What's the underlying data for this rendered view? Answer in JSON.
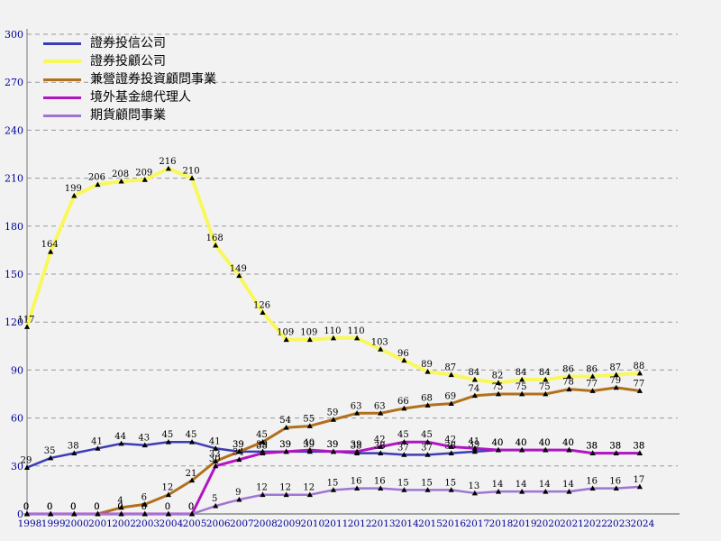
{
  "chart_data": {
    "type": "line",
    "x": [
      1998,
      1999,
      2000,
      2001,
      2002,
      2003,
      2004,
      2005,
      2006,
      2007,
      2008,
      2009,
      2010,
      2011,
      2012,
      2013,
      2014,
      2015,
      2016,
      2017,
      2018,
      2019,
      2020,
      2021,
      2022,
      2023,
      2024
    ],
    "series": [
      {
        "name": "證券投信公司",
        "color": "#3c3cb4",
        "width": 2.5,
        "values": [
          29,
          35,
          38,
          41,
          44,
          43,
          45,
          45,
          41,
          39,
          39,
          39,
          39,
          39,
          38,
          38,
          37,
          37,
          38,
          39,
          40,
          40,
          40,
          40,
          38,
          38,
          38
        ]
      },
      {
        "name": "證券投顧公司",
        "color": "#f8f85c",
        "width": 4,
        "values": [
          117,
          164,
          199,
          206,
          208,
          209,
          216,
          210,
          168,
          149,
          126,
          109,
          109,
          110,
          110,
          103,
          96,
          89,
          87,
          84,
          82,
          84,
          84,
          86,
          86,
          87,
          88
        ]
      },
      {
        "name": "兼營證券投資顧問事業",
        "color": "#b1701c",
        "width": 3,
        "values": [
          0,
          0,
          0,
          0,
          4,
          6,
          12,
          21,
          33,
          39,
          45,
          54,
          55,
          59,
          63,
          63,
          66,
          68,
          69,
          74,
          75,
          75,
          75,
          78,
          77,
          79,
          77
        ]
      },
      {
        "name": "境外基金總代理人",
        "color": "#b016c0",
        "width": 3,
        "values": [
          0,
          0,
          0,
          0,
          0,
          0,
          0,
          0,
          30,
          34,
          38,
          39,
          40,
          39,
          39,
          42,
          45,
          45,
          42,
          41,
          40,
          40,
          40,
          40,
          38,
          38,
          38
        ]
      },
      {
        "name": "期貨顧問事業",
        "color": "#9f75d3",
        "width": 2.5,
        "values": [
          0,
          0,
          0,
          0,
          0,
          0,
          0,
          0,
          5,
          9,
          12,
          12,
          12,
          15,
          16,
          16,
          15,
          15,
          15,
          13,
          14,
          14,
          14,
          14,
          16,
          16,
          17
        ]
      }
    ],
    "title": "",
    "xlabel": "",
    "ylabel": "",
    "ylim": [
      0,
      300
    ],
    "ytick_step": 30,
    "grid": true,
    "legend_position": "top-left",
    "marker": "triangle",
    "marker_color": "#000000",
    "data_label_color": "#000000",
    "axis_color": "#8a8a8a",
    "grid_color": "#999999",
    "tick_label_color": "#000099",
    "background": "#f2f2f2"
  }
}
